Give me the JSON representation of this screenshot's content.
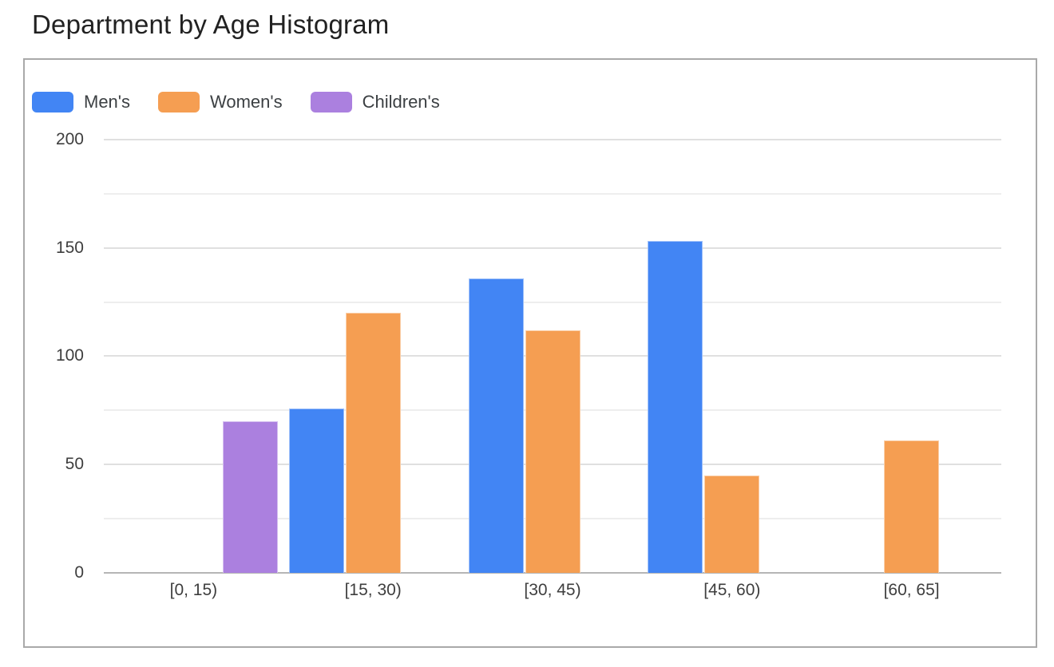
{
  "title": "Department by Age Histogram",
  "chart_data": {
    "type": "bar",
    "title": "Department by Age Histogram",
    "categories": [
      "[0, 15)",
      "[15, 30)",
      "[30, 45)",
      "[45, 60)",
      "[60, 65]"
    ],
    "series": [
      {
        "name": "Men's",
        "color": "#4285F4",
        "values": [
          0,
          76,
          136,
          153,
          0
        ]
      },
      {
        "name": "Women's",
        "color": "#F59E52",
        "values": [
          0,
          120,
          112,
          45,
          61
        ]
      },
      {
        "name": "Children's",
        "color": "#AB80DF",
        "values": [
          70,
          0,
          0,
          0,
          0
        ]
      }
    ],
    "xlabel": "",
    "ylabel": "",
    "ylim": [
      0,
      200
    ],
    "y_tick_labels": [
      0,
      50,
      100,
      150,
      200
    ],
    "y_gridline_step": 25,
    "grid": true,
    "legend_position": "top-left"
  },
  "colors": {
    "mens": "#4285F4",
    "womens": "#F59E52",
    "childrens": "#AB80DF",
    "gridline_major": "#e0e0e0",
    "gridline_minor": "#eeeeee",
    "axis_baseline": "#b5b5b5",
    "chart_border": "#a9a9a9",
    "tick_text": "#3e3e3e",
    "legend_text": "#3c4043",
    "title_text": "#212121",
    "background": "#ffffff"
  }
}
